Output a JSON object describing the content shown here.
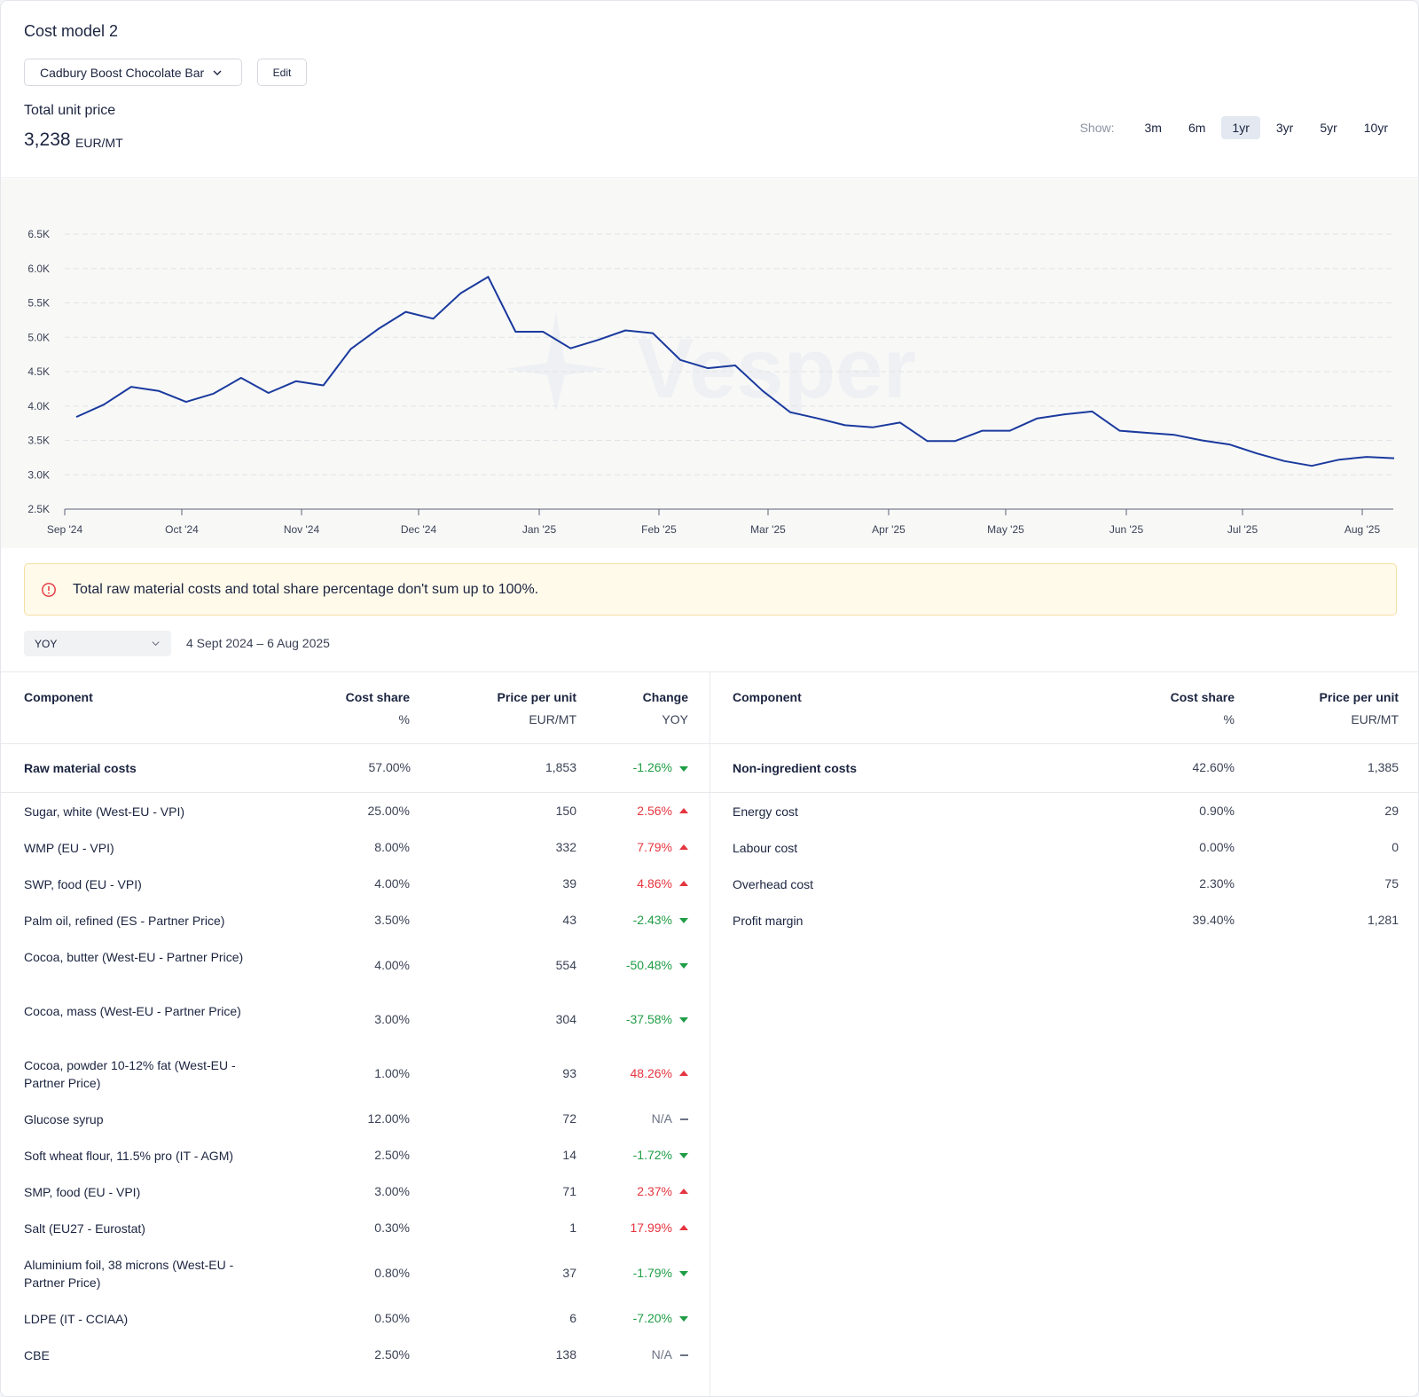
{
  "header": {
    "title": "Cost model 2",
    "product": "Cadbury Boost Chocolate Bar",
    "edit_label": "Edit",
    "total_label": "Total unit price",
    "total_value": "3,238",
    "total_unit": "EUR/MT",
    "show_label": "Show:",
    "ranges": [
      "3m",
      "6m",
      "1yr",
      "3yr",
      "5yr",
      "10yr"
    ],
    "active_range": "1yr"
  },
  "chart_data": {
    "type": "line",
    "watermark": "Vesper",
    "series": [
      {
        "values": [
          3840,
          4020,
          4280,
          4220,
          4060,
          4180,
          4410,
          4190,
          4360,
          4300,
          4830,
          5120,
          5370,
          5270,
          5640,
          5880,
          5080,
          5080,
          4840,
          4960,
          5100,
          5060,
          4670,
          4550,
          4590,
          4220,
          3910,
          3820,
          3720,
          3690,
          3760,
          3490,
          3490,
          3640,
          3640,
          3820,
          3880,
          3920,
          3640,
          3610,
          3580,
          3500,
          3440,
          3310,
          3200,
          3130,
          3220,
          3260,
          3240
        ]
      }
    ],
    "x_labels": [
      "Sep '24",
      "Oct '24",
      "Nov '24",
      "Dec '24",
      "Jan '25",
      "Feb '25",
      "Mar '25",
      "Apr '25",
      "May '25",
      "Jun '25",
      "Jul '25",
      "Aug '25"
    ],
    "y_ticks": [
      2500,
      3000,
      3500,
      4000,
      4500,
      5000,
      5500,
      6000,
      6500
    ],
    "y_tick_labels": [
      "2.5K",
      "3.0K",
      "3.5K",
      "4.0K",
      "4.5K",
      "5.0K",
      "5.5K",
      "6.0K",
      "6.5K"
    ],
    "ylim": [
      2500,
      6500
    ],
    "line_color": "#1a3a9e",
    "grid": true
  },
  "warning": {
    "text": "Total raw material costs and total share percentage don't sum up to 100%."
  },
  "period": {
    "selected": "YOY",
    "dates": "4 Sept 2024 – 6 Aug 2025"
  },
  "left_table": {
    "headers": {
      "component": "Component",
      "share": "Cost share",
      "share_unit": "%",
      "price": "Price per unit",
      "price_unit": "EUR/MT",
      "change": "Change",
      "change_unit": "YOY"
    },
    "summary": {
      "name": "Raw material costs",
      "share": "57.00%",
      "price": "1,853",
      "change": "-1.26%",
      "dir": "down"
    },
    "rows": [
      {
        "name": "Sugar, white (West-EU - VPI)",
        "share": "25.00%",
        "price": "150",
        "change": "2.56%",
        "dir": "up"
      },
      {
        "name": "WMP (EU - VPI)",
        "share": "8.00%",
        "price": "332",
        "change": "7.79%",
        "dir": "up"
      },
      {
        "name": "SWP, food (EU - VPI)",
        "share": "4.00%",
        "price": "39",
        "change": "4.86%",
        "dir": "up"
      },
      {
        "name": "Palm oil, refined (ES - Partner Price)",
        "share": "3.50%",
        "price": "43",
        "change": "-2.43%",
        "dir": "down"
      },
      {
        "name": "Cocoa, butter (West-EU - Partner Price)",
        "share": "4.00%",
        "price": "554",
        "change": "-50.48%",
        "dir": "down"
      },
      {
        "name": "Cocoa, mass (West-EU - Partner Price)",
        "share": "3.00%",
        "price": "304",
        "change": "-37.58%",
        "dir": "down"
      },
      {
        "name": "Cocoa, powder 10-12% fat (West-EU - Partner Price)",
        "share": "1.00%",
        "price": "93",
        "change": "48.26%",
        "dir": "up"
      },
      {
        "name": "Glucose syrup",
        "share": "12.00%",
        "price": "72",
        "change": "N/A",
        "dir": "na"
      },
      {
        "name": "Soft wheat flour, 11.5% pro (IT - AGM)",
        "share": "2.50%",
        "price": "14",
        "change": "-1.72%",
        "dir": "down"
      },
      {
        "name": "SMP, food (EU - VPI)",
        "share": "3.00%",
        "price": "71",
        "change": "2.37%",
        "dir": "up"
      },
      {
        "name": "Salt (EU27 - Eurostat)",
        "share": "0.30%",
        "price": "1",
        "change": "17.99%",
        "dir": "up"
      },
      {
        "name": "Aluminium foil, 38 microns (West-EU - Partner Price)",
        "share": "0.80%",
        "price": "37",
        "change": "-1.79%",
        "dir": "down"
      },
      {
        "name": "LDPE (IT - CCIAA)",
        "share": "0.50%",
        "price": "6",
        "change": "-7.20%",
        "dir": "down"
      },
      {
        "name": "CBE",
        "share": "2.50%",
        "price": "138",
        "change": "N/A",
        "dir": "na"
      }
    ]
  },
  "right_table": {
    "headers": {
      "component": "Component",
      "share": "Cost share",
      "share_unit": "%",
      "price": "Price per unit",
      "price_unit": "EUR/MT"
    },
    "summary": {
      "name": "Non-ingredient costs",
      "share": "42.60%",
      "price": "1,385"
    },
    "rows": [
      {
        "name": "Energy cost",
        "share": "0.90%",
        "price": "29"
      },
      {
        "name": "Labour cost",
        "share": "0.00%",
        "price": "0"
      },
      {
        "name": "Overhead cost",
        "share": "2.30%",
        "price": "75"
      },
      {
        "name": "Profit margin",
        "share": "39.40%",
        "price": "1,281"
      }
    ]
  }
}
